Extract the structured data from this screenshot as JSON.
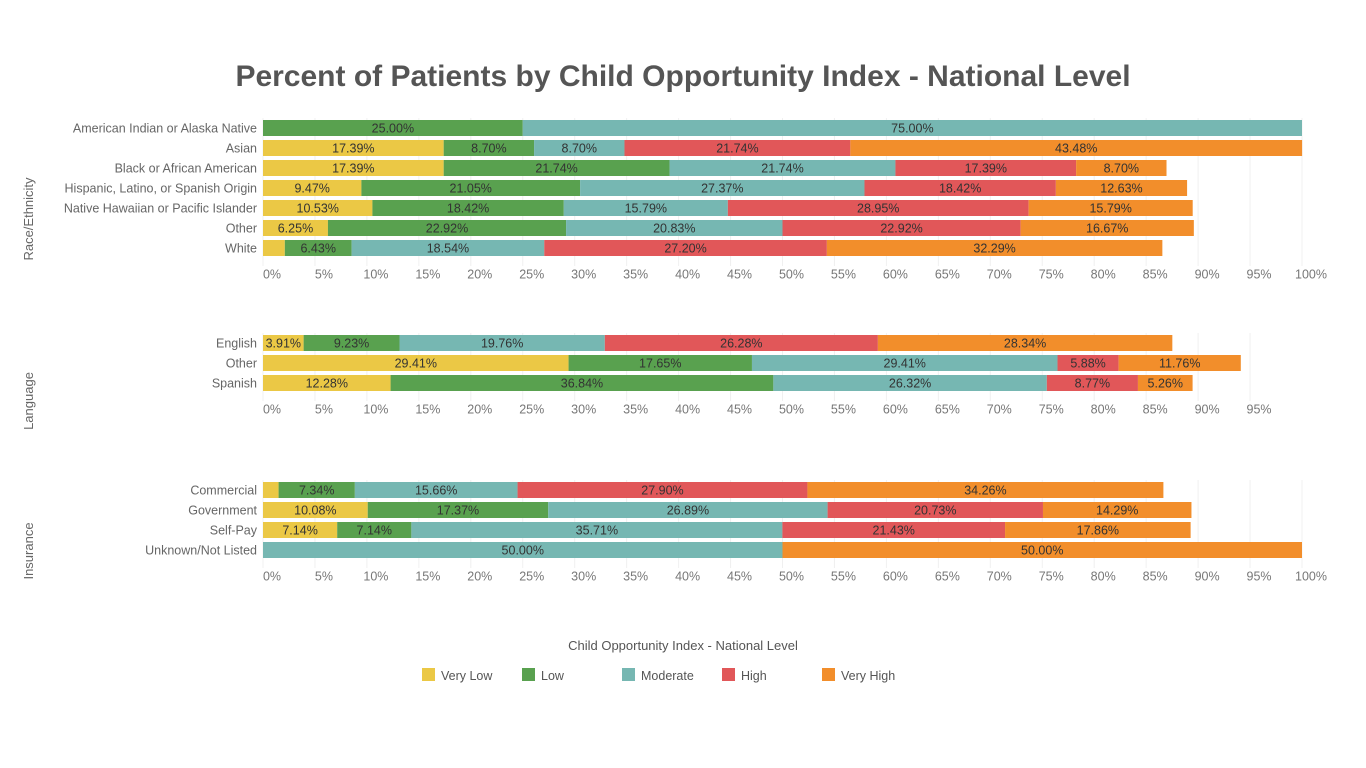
{
  "chart_data": {
    "type": "bar",
    "stacked": true,
    "orientation": "horizontal",
    "title": "Percent of Patients by Child Opportunity Index - National Level",
    "legend_title": "Child Opportunity Index - National Level",
    "legend_position": "bottom",
    "series_names": [
      "Very Low",
      "Low",
      "Moderate",
      "High",
      "Very High"
    ],
    "colors": [
      "#EBC845",
      "#59A14F",
      "#76B7B2",
      "#E15759",
      "#F28E2B"
    ],
    "sections": [
      {
        "label": "Race/Ethnicity",
        "xlim": [
          0,
          100
        ],
        "ticks": [
          "0%",
          "5%",
          "10%",
          "15%",
          "20%",
          "25%",
          "30%",
          "35%",
          "40%",
          "45%",
          "50%",
          "55%",
          "60%",
          "65%",
          "70%",
          "75%",
          "80%",
          "85%",
          "90%",
          "95%",
          "100%"
        ],
        "categories": [
          {
            "name": "American Indian or Alaska Native",
            "values": [
              0,
              25.0,
              75.0,
              0,
              0
            ],
            "labels": [
              "",
              "25.00%",
              "75.00%",
              "",
              ""
            ]
          },
          {
            "name": "Asian",
            "values": [
              17.39,
              8.7,
              8.7,
              21.74,
              43.48
            ],
            "labels": [
              "17.39%",
              "8.70%",
              "8.70%",
              "21.74%",
              "43.48%"
            ]
          },
          {
            "name": "Black or African American",
            "values": [
              17.39,
              21.74,
              21.74,
              17.39,
              8.7
            ],
            "labels": [
              "17.39%",
              "21.74%",
              "21.74%",
              "17.39%",
              "8.70%"
            ]
          },
          {
            "name": "Hispanic, Latino, or Spanish Origin",
            "values": [
              9.47,
              21.05,
              27.37,
              18.42,
              12.63
            ],
            "labels": [
              "9.47%",
              "21.05%",
              "27.37%",
              "18.42%",
              "12.63%"
            ]
          },
          {
            "name": "Native Hawaiian or Pacific Islander",
            "values": [
              10.53,
              18.42,
              15.79,
              28.95,
              15.79
            ],
            "labels": [
              "10.53%",
              "18.42%",
              "15.79%",
              "28.95%",
              "15.79%"
            ]
          },
          {
            "name": "Other",
            "values": [
              6.25,
              22.92,
              20.83,
              22.92,
              16.67
            ],
            "labels": [
              "6.25%",
              "22.92%",
              "20.83%",
              "22.92%",
              "16.67%"
            ]
          },
          {
            "name": "White",
            "values": [
              2.1,
              6.43,
              18.54,
              27.2,
              32.29
            ],
            "labels": [
              "",
              "6.43%",
              "18.54%",
              "27.20%",
              "32.29%"
            ]
          }
        ]
      },
      {
        "label": "Language",
        "xlim": [
          0,
          95
        ],
        "ticks": [
          "0%",
          "5%",
          "10%",
          "15%",
          "20%",
          "25%",
          "30%",
          "35%",
          "40%",
          "45%",
          "50%",
          "55%",
          "60%",
          "65%",
          "70%",
          "75%",
          "80%",
          "85%",
          "90%",
          "95%"
        ],
        "categories": [
          {
            "name": "English",
            "values": [
              3.91,
              9.23,
              19.76,
              26.28,
              28.34
            ],
            "labels": [
              "3.91%",
              "9.23%",
              "19.76%",
              "26.28%",
              "28.34%"
            ]
          },
          {
            "name": "Other",
            "values": [
              29.41,
              17.65,
              29.41,
              5.88,
              11.76
            ],
            "labels": [
              "29.41%",
              "17.65%",
              "29.41%",
              "5.88%",
              "11.76%"
            ]
          },
          {
            "name": "Spanish",
            "values": [
              12.28,
              36.84,
              26.32,
              8.77,
              5.26
            ],
            "labels": [
              "12.28%",
              "36.84%",
              "26.32%",
              "8.77%",
              "5.26%"
            ]
          }
        ]
      },
      {
        "label": "Insurance",
        "xlim": [
          0,
          100
        ],
        "ticks": [
          "0%",
          "5%",
          "10%",
          "15%",
          "20%",
          "25%",
          "30%",
          "35%",
          "40%",
          "45%",
          "50%",
          "55%",
          "60%",
          "65%",
          "70%",
          "75%",
          "80%",
          "85%",
          "90%",
          "95%",
          "100%"
        ],
        "categories": [
          {
            "name": "Commercial",
            "values": [
              1.5,
              7.34,
              15.66,
              27.9,
              34.26
            ],
            "labels": [
              "",
              "7.34%",
              "15.66%",
              "27.90%",
              "34.26%"
            ]
          },
          {
            "name": "Government",
            "values": [
              10.08,
              17.37,
              26.89,
              20.73,
              14.29
            ],
            "labels": [
              "10.08%",
              "17.37%",
              "26.89%",
              "20.73%",
              "14.29%"
            ]
          },
          {
            "name": "Self-Pay",
            "values": [
              7.14,
              7.14,
              35.71,
              21.43,
              17.86
            ],
            "labels": [
              "7.14%",
              "7.14%",
              "35.71%",
              "21.43%",
              "17.86%"
            ]
          },
          {
            "name": "Unknown/Not Listed",
            "values": [
              0,
              0,
              50.0,
              0,
              50.0
            ],
            "labels": [
              "",
              "",
              "50.00%",
              "",
              "50.00%"
            ]
          }
        ]
      }
    ]
  }
}
